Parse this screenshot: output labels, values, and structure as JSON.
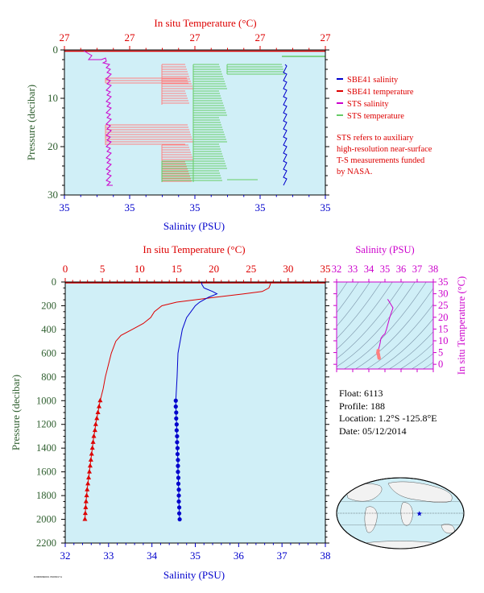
{
  "colors": {
    "salinity": "#0000cc",
    "temperature": "#dd0000",
    "sts_salinity": "#cc00cc",
    "sts_temperature": "#66cc66",
    "sts_temperature_alt": "#ff8080",
    "plot_bg": "#d0eff7",
    "pressure_label": "#2f5f2f",
    "ts_axis": "#cc00cc"
  },
  "top_chart": {
    "temp_axis_title": "In situ Temperature (°C)",
    "temp_ticks": [
      "27",
      "27",
      "27",
      "27",
      "27"
    ],
    "sal_axis_title": "Salinity (PSU)",
    "sal_ticks": [
      "35",
      "35",
      "35",
      "35",
      "35"
    ],
    "pressure_axis_title": "Pressure (decibar)",
    "pressure_ticks": [
      "0",
      "10",
      "20",
      "30"
    ],
    "legend": [
      {
        "label": "SBE41 salinity",
        "color": "#0000cc"
      },
      {
        "label": "SBE41 temperature",
        "color": "#dd0000"
      },
      {
        "label": "STS salinity",
        "color": "#cc00cc"
      },
      {
        "label": "STS temperature",
        "color": "#66cc66"
      }
    ],
    "note_lines": [
      "STS refers to auxiliary",
      "high-resolution near-surface",
      "T-S measurements funded",
      "by NASA."
    ]
  },
  "chart_data": [
    {
      "type": "line",
      "panel": "near-surface profile",
      "x_axis_top": "In situ Temperature (°C)",
      "x_axis_bottom": "Salinity (PSU)",
      "ylabel": "Pressure (decibar)",
      "ylim": [
        30,
        0
      ],
      "series": [
        {
          "name": "SBE41 salinity",
          "pressure": [
            3,
            6,
            10,
            14,
            18,
            22,
            26,
            27.5
          ]
        },
        {
          "name": "SBE41 temperature",
          "pressure": [
            0,
            0.5
          ]
        },
        {
          "name": "STS salinity",
          "pressure": [
            0.5,
            1.5,
            2,
            4,
            8,
            12,
            16,
            20,
            24,
            28
          ]
        },
        {
          "name": "STS temperature",
          "pressure": [
            1,
            1.5,
            3,
            4,
            6,
            8,
            10,
            12,
            14,
            16,
            18,
            20,
            22,
            24,
            26,
            27.5
          ]
        }
      ]
    },
    {
      "type": "line",
      "panel": "full-depth profile",
      "temp_axis_title": "In situ Temperature (°C)",
      "temp_ticks": [
        "0",
        "5",
        "10",
        "15",
        "20",
        "25",
        "30",
        "35"
      ],
      "temp_lim": [
        0,
        35
      ],
      "sal_axis_title": "Salinity (PSU)",
      "sal_ticks": [
        "32",
        "33",
        "34",
        "35",
        "36",
        "37",
        "38"
      ],
      "sal_lim": [
        32,
        38
      ],
      "pressure_axis_title": "Pressure (decibar)",
      "pressure_ticks": [
        "0",
        "200",
        "400",
        "600",
        "800",
        "1000",
        "1200",
        "1400",
        "1600",
        "1800",
        "2000",
        "2200"
      ],
      "pressure_lim": [
        0,
        2200
      ],
      "temperature": {
        "pressure": [
          0,
          20,
          50,
          80,
          100,
          130,
          170,
          200,
          250,
          300,
          350,
          400,
          450,
          500,
          600,
          700,
          800,
          900,
          1000
        ],
        "values": [
          27.6,
          27.6,
          27.4,
          26.5,
          24.0,
          20.0,
          15.0,
          13.0,
          12.0,
          11.5,
          10.5,
          9.0,
          7.5,
          6.8,
          6.2,
          5.8,
          5.4,
          5.1,
          4.7
        ]
      },
      "temperature_deep": {
        "pressure": [
          1000,
          1050,
          1100,
          1150,
          1200,
          1250,
          1300,
          1350,
          1400,
          1450,
          1500,
          1550,
          1600,
          1650,
          1700,
          1750,
          1800,
          1850,
          1900,
          1950,
          2000
        ],
        "values": [
          4.7,
          4.55,
          4.4,
          4.25,
          4.1,
          4.0,
          3.85,
          3.75,
          3.65,
          3.55,
          3.45,
          3.35,
          3.25,
          3.15,
          3.05,
          2.95,
          2.88,
          2.8,
          2.75,
          2.7,
          2.65
        ]
      },
      "salinity": {
        "pressure": [
          0,
          20,
          50,
          80,
          100,
          130,
          170,
          200,
          300,
          400,
          500,
          600,
          800,
          1000
        ],
        "values": [
          35.15,
          35.15,
          35.2,
          35.4,
          35.5,
          35.3,
          35.1,
          35.0,
          34.8,
          34.7,
          34.65,
          34.6,
          34.58,
          34.55
        ]
      },
      "salinity_deep": {
        "pressure": [
          1000,
          1050,
          1100,
          1150,
          1200,
          1250,
          1300,
          1350,
          1400,
          1450,
          1500,
          1550,
          1600,
          1650,
          1700,
          1750,
          1800,
          1850,
          1900,
          1950,
          2000
        ],
        "values": [
          34.55,
          34.55,
          34.56,
          34.56,
          34.57,
          34.57,
          34.58,
          34.58,
          34.59,
          34.59,
          34.6,
          34.6,
          34.6,
          34.61,
          34.61,
          34.62,
          34.62,
          34.62,
          34.63,
          34.63,
          34.64
        ]
      }
    },
    {
      "type": "scatter",
      "panel": "T-S diagram",
      "xlabel": "Salinity (PSU)",
      "x_ticks": [
        "32",
        "33",
        "34",
        "35",
        "36",
        "37",
        "38"
      ],
      "xlim": [
        32,
        38
      ],
      "ylabel": "In situ Temperature (°C)",
      "y_ticks": [
        "0",
        "5",
        "10",
        "15",
        "20",
        "25",
        "30",
        "35"
      ],
      "ylim": [
        -2,
        35
      ],
      "points": {
        "salinity": [
          35.15,
          35.2,
          35.5,
          35.3,
          35.1,
          35.0,
          34.85,
          34.75,
          34.7,
          34.65,
          34.6,
          34.58,
          34.56,
          34.58,
          34.6,
          34.62,
          34.64
        ],
        "temperature": [
          27.6,
          27.4,
          24.0,
          20.0,
          15.0,
          13.0,
          12.0,
          11.0,
          9.0,
          7.5,
          6.5,
          5.8,
          5.0,
          4.5,
          4.0,
          3.2,
          2.65
        ]
      }
    }
  ],
  "float_info": {
    "float": "Float:  6113",
    "profile": "Profile:  188",
    "location": "Location:  1.2°S  -125.8°E",
    "date": "Date:  05/12/2014"
  },
  "map": {
    "marker_lon": -125.8,
    "marker_lat": -1.2
  },
  "footer_code": "P2008060001 E0080174"
}
